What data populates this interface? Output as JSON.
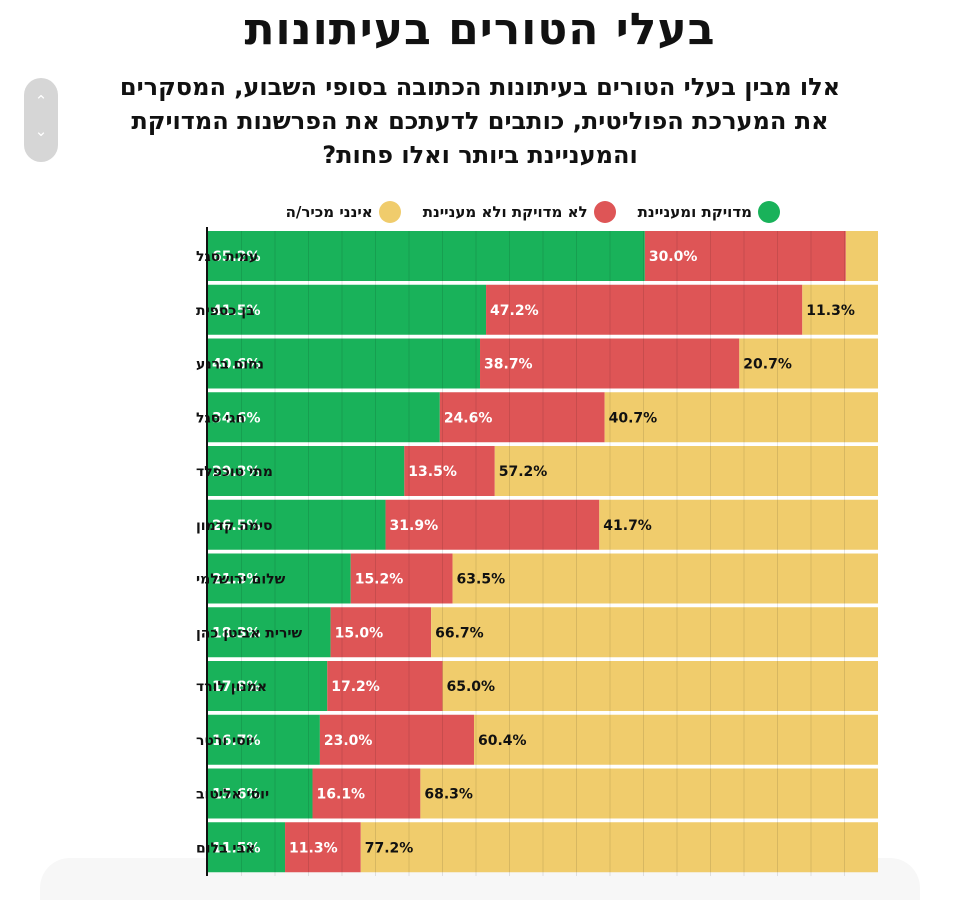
{
  "chart_data": {
    "type": "bar",
    "orientation": "horizontal",
    "stacked": true,
    "title": "בעלי הטורים בעיתונות",
    "subtitle": "אלו מבין בעלי הטורים בעיתונות הכתובה בסופי השבוע, המסקרים את המערכת הפוליטית, כותבים לדעתכם את הפרשנות המדויקת והמעניינת ביותר ואלו פחות?",
    "xlim": [
      0,
      100
    ],
    "grid": true,
    "legend_placement": "top",
    "categories": [
      "עמית סגל",
      "בן כספית",
      "נחום ברנע",
      "חגי סגל",
      "מתי טוכפלד",
      "סימה קדמון",
      "שלום ירושלמי",
      "שירית אביטן כהן",
      "אמנון לורד",
      "יוסי ורטר",
      "יוסי אליטוב",
      "אבי בלום"
    ],
    "series": [
      {
        "name": "מדויקת ומעניינת",
        "color": "#19b25a",
        "values": [
          65.2,
          41.5,
          40.6,
          34.6,
          29.3,
          26.5,
          21.3,
          18.3,
          17.8,
          16.7,
          15.6,
          11.5
        ]
      },
      {
        "name": "לא מדויקת ולא מעניינת",
        "color": "#de5556",
        "values": [
          30.0,
          47.2,
          38.7,
          24.6,
          13.5,
          31.9,
          15.2,
          15.0,
          17.2,
          23.0,
          16.1,
          11.3
        ]
      },
      {
        "name": "אינני מכיר/ה",
        "color": "#f0cc6c",
        "values": [
          4.8,
          11.3,
          20.7,
          40.7,
          57.2,
          41.7,
          63.5,
          66.7,
          65.0,
          60.4,
          68.3,
          77.2
        ],
        "value_labels": [
          "",
          "11.3%",
          "20.7%",
          "40.7%",
          "57.2%",
          "41.7%",
          "63.5%",
          "66.7%",
          "65.0%",
          "60.4%",
          "68.3%",
          "77.2%"
        ]
      }
    ],
    "value_labels": {
      "green": [
        "65.2%",
        "41.5%",
        "40.6%",
        "34.6%",
        "29.3%",
        "26.5%",
        "21.3%",
        "18.3%",
        "17.8%",
        "16.7%",
        "15.6%",
        "11.5%"
      ],
      "red": [
        "30.0%",
        "47.2%",
        "38.7%",
        "24.6%",
        "13.5%",
        "31.9%",
        "15.2%",
        "15.0%",
        "17.2%",
        "23.0%",
        "16.1%",
        "11.3%"
      ]
    }
  },
  "scroll": {
    "up_icon": "chevron-up-icon",
    "down_icon": "chevron-down-icon",
    "up_glyph": "⌃",
    "down_glyph": "⌄"
  }
}
